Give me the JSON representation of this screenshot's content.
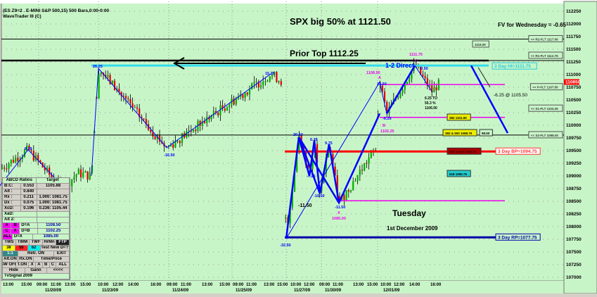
{
  "header": {
    "line1": "(ES Z9=2 . E-MINI S&P 500,15) 500 Bars,0:00-0:00",
    "line2": "WaveTrader III (C)"
  },
  "annotations": {
    "title": "SPX big 50% at 1121.50",
    "fv": "FV for Wednesday = -0.65",
    "prior_top": "Prior Top 1112.25",
    "direct": "1-2 Direct",
    "day": "Tuesday",
    "date": "1st December 2009",
    "proj": "-6.25 @ 1105.50",
    "retr": [
      "6.25 TO",
      "55.3 %",
      "1106.50"
    ],
    "swings": [
      {
        "t": "8.75",
        "c": "#00f"
      },
      {
        "t": "26.25",
        "c": "#00f"
      },
      {
        "t": "-16.50",
        "c": "#00f"
      },
      {
        "t": "15.25",
        "c": "#00f"
      },
      {
        "t": "-32.50",
        "c": "#00f"
      },
      {
        "t": "20.50",
        "c": "#00f"
      },
      {
        "t": "-7.25",
        "c": "#00f"
      },
      {
        "t": "6.25",
        "c": "#00f"
      },
      {
        "t": "-10.50",
        "c": "#00f"
      },
      {
        "t": "9.75",
        "c": "#00f"
      },
      {
        "t": "-11.50",
        "c": "#000"
      },
      {
        "t": "-11.50",
        "c": "#00f"
      },
      {
        "t": "X",
        "c": "#e0e"
      },
      {
        "t": "1085.00",
        "c": "#e0e"
      },
      {
        "t": "23.50",
        "c": "#00f"
      },
      {
        "t": "A",
        "c": "#e0e"
      },
      {
        "t": "1108.50",
        "c": "#e0e"
      },
      {
        "t": "-6.25",
        "c": "#00f"
      },
      {
        "t": "B",
        "c": "#e0e"
      },
      {
        "t": "1102.25",
        "c": "#e0e"
      },
      {
        "t": "9.50",
        "c": "#00f"
      },
      {
        "t": "C",
        "c": "#e0e"
      },
      {
        "t": "1111.75",
        "c": "#e0e"
      }
    ]
  },
  "levels": {
    "r2": "<< R2-FLT 1117.00",
    "r1": "<< R1-FLT 1112.75",
    "p": "<< P-FLT 1107.50",
    "s1": "<< S1-FLT 1103.25",
    "s2": "<< S2-FLT 1098.00",
    "hi3": "3 Day HI=1111.75",
    "bp3": "3 Day BP=1094.75",
    "rp3": "3 Day RP=1077.75",
    "b1116": "1116.00",
    "f382": "382 1101.50",
    "f382500": "382 & 500 1098.75",
    "f500618": "500 & 618 1094.75",
    "f618": "618 1090.75",
    "small": "98.50"
  },
  "chart_data": {
    "type": "candlestick",
    "ylim": [
      1070,
      1122.5
    ],
    "yticks": [
      "112250",
      "112000",
      "111750",
      "111500",
      "111250",
      "111000",
      "110750",
      "110500",
      "110250",
      "110000",
      "109750",
      "109500",
      "109250",
      "109000",
      "108750",
      "108500",
      "108250",
      "108000",
      "107750",
      "107500",
      "107250",
      "107000"
    ],
    "last_price": "110850",
    "xticks": [
      "13:00",
      "15:00",
      "09:00",
      "11:00",
      "13:00",
      "15:00",
      "10:00",
      "12:00",
      "14:00",
      "16:00",
      "09:00",
      "11:00",
      "13:00",
      "15:00",
      "09:00",
      "11:00",
      "13:00",
      "15:00",
      "10:00",
      "12:00",
      "09:00",
      "11:00",
      "13:00",
      "15:00",
      "10:00",
      "12:00",
      "14:00",
      "16:00"
    ],
    "dates": [
      "11/20/09",
      "11/23/09",
      "11/24/09",
      "11/25/09",
      "11/27/09",
      "11/30/09",
      "12/01/09"
    ],
    "pivots": [
      1091.3,
      1095.1,
      1087.2,
      1090.5,
      1089.9,
      1111.2,
      1095.5,
      1110.1,
      1108.7,
      1077.5,
      1097.6,
      1089.9,
      1096.9,
      1086.4,
      1096.2,
      1084.6,
      1095.5,
      1108.5,
      1102.25,
      1111.75,
      1106.5,
      1108.0
    ],
    "colors": {
      "bg": "#c8f5c8",
      "up": "#00b000",
      "down": "#e00000",
      "zigzag": "#0000ff"
    }
  },
  "panel": {
    "rows": [
      [
        "ABCD Ratios",
        "Target"
      ],
      [
        "B:C:",
        "0.553",
        "1105.88"
      ],
      [
        "Alt :",
        "0.840",
        ""
      ],
      [
        "Rx :",
        "0.211",
        "1.000: 1081.75"
      ],
      [
        "Dx :",
        "0.075",
        "1.000: 1081.75"
      ],
      [
        "XcD:",
        "0.196",
        "0.236: 1105.44"
      ],
      [
        "XaD:"
      ],
      [
        "Alt 2:"
      ]
    ],
    "dtargets": [
      [
        "A",
        "B",
        "D=A",
        "1108.50"
      ],
      [
        "C",
        "X",
        "D=B",
        "1102.25"
      ],
      [
        "ALL",
        "D=X",
        "1085.00"
      ]
    ],
    "buttons": [
      "TWS",
      "TWM",
      "TWF",
      "HrMn",
      "FTP",
      "38",
      "50",
      "62",
      "Test New D=?",
      "1:1",
      "Retr. ON",
      "EXIT",
      "Alt.ON",
      "Rx.ON",
      "Time/Price",
      "SW OFF",
      "T.ON",
      "X",
      "A",
      "B",
      "C",
      "ALL",
      "Hide",
      "Gann",
      "<<<<"
    ],
    "footer": "TvSignal 2009"
  }
}
